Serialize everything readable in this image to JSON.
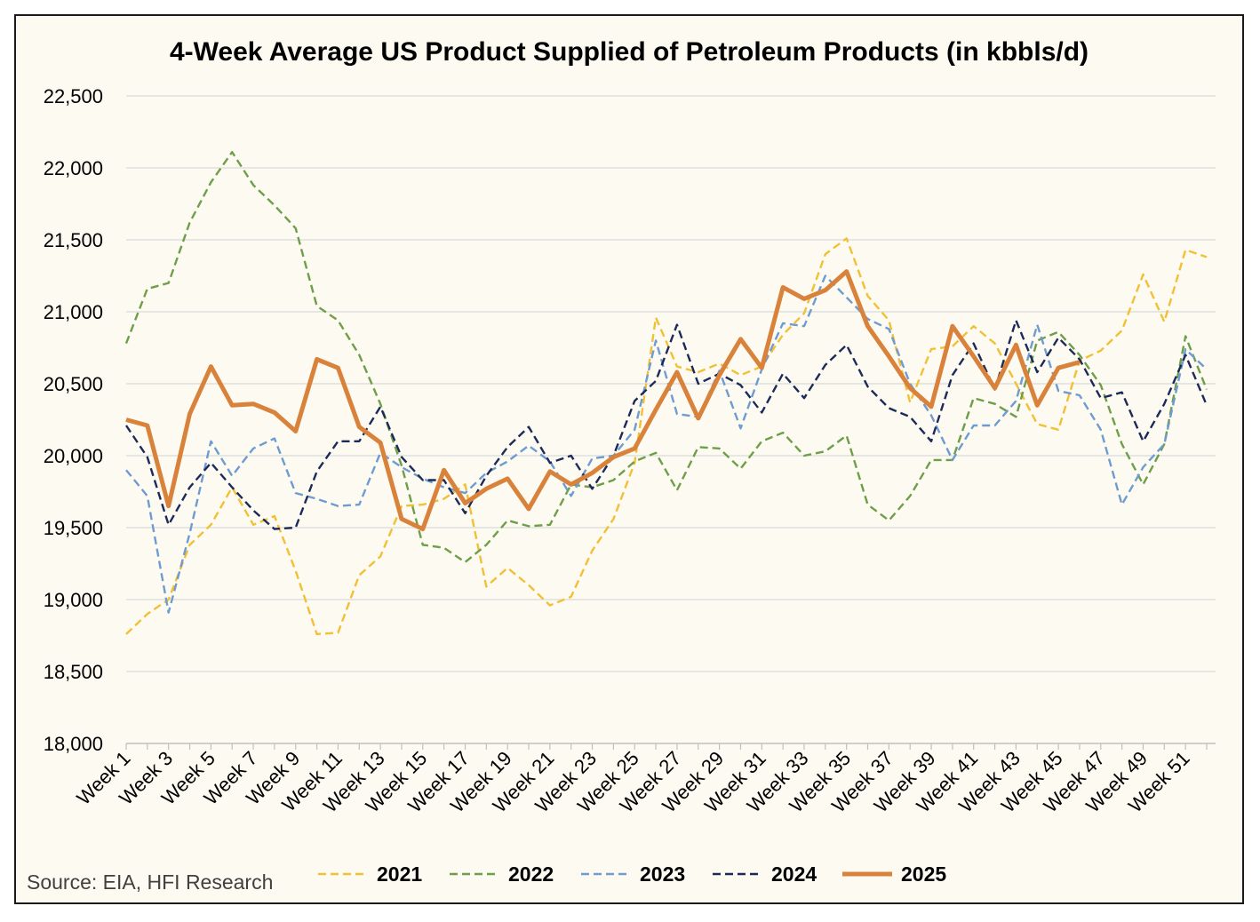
{
  "chart_data": {
    "type": "line",
    "title": "4-Week Average US Product Supplied of Petroleum Products (in kbbls/d)",
    "source": "Source: EIA, HFI Research",
    "xlabel": "",
    "ylabel": "",
    "ylim": [
      18000,
      22500
    ],
    "yticks": [
      18000,
      18500,
      19000,
      19500,
      20000,
      20500,
      21000,
      21500,
      22000,
      22500
    ],
    "ytick_labels": [
      "18,000",
      "18,500",
      "19,000",
      "19,500",
      "20,000",
      "20,500",
      "21,000",
      "21,500",
      "22,000",
      "22,500"
    ],
    "categories": [
      "Week 1",
      "Week 2",
      "Week 3",
      "Week 4",
      "Week 5",
      "Week 6",
      "Week 7",
      "Week 8",
      "Week 9",
      "Week 10",
      "Week 11",
      "Week 12",
      "Week 13",
      "Week 14",
      "Week 15",
      "Week 16",
      "Week 17",
      "Week 18",
      "Week 19",
      "Week 20",
      "Week 21",
      "Week 22",
      "Week 23",
      "Week 24",
      "Week 25",
      "Week 26",
      "Week 27",
      "Week 28",
      "Week 29",
      "Week 30",
      "Week 31",
      "Week 32",
      "Week 33",
      "Week 34",
      "Week 35",
      "Week 36",
      "Week 37",
      "Week 38",
      "Week 39",
      "Week 40",
      "Week 41",
      "Week 42",
      "Week 43",
      "Week 44",
      "Week 45",
      "Week 46",
      "Week 47",
      "Week 48",
      "Week 49",
      "Week 50",
      "Week 51",
      "Week 52"
    ],
    "xtick_labels": [
      "Week 1",
      "Week 3",
      "Week 5",
      "Week 7",
      "Week 9",
      "Week 11",
      "Week 13",
      "Week 15",
      "Week 17",
      "Week 19",
      "Week 21",
      "Week 23",
      "Week 25",
      "Week 27",
      "Week 29",
      "Week 31",
      "Week 33",
      "Week 35",
      "Week 37",
      "Week 39",
      "Week 41",
      "Week 43",
      "Week 45",
      "Week 47",
      "Week 49",
      "Week 51"
    ],
    "grid": true,
    "legend_position": "bottom",
    "series": [
      {
        "name": "2021",
        "color": "#f2c037",
        "style": "dashed",
        "values": [
          18760,
          18900,
          19000,
          19380,
          19520,
          19780,
          19520,
          19580,
          19200,
          18760,
          18770,
          19170,
          19300,
          19650,
          19660,
          19700,
          19800,
          19090,
          19220,
          19100,
          18960,
          19020,
          19340,
          19560,
          19950,
          20960,
          20620,
          20580,
          20640,
          20560,
          20620,
          20840,
          20990,
          21400,
          21510,
          21110,
          20940,
          20370,
          20740,
          20760,
          20900,
          20780,
          20500,
          20220,
          20180,
          20660,
          20730,
          20870,
          21260,
          20930,
          21430,
          21380
        ]
      },
      {
        "name": "2022",
        "color": "#6f9e4a",
        "style": "dashed",
        "values": [
          20780,
          21160,
          21200,
          21620,
          21900,
          22110,
          21880,
          21740,
          21580,
          21040,
          20940,
          20700,
          20360,
          19930,
          19380,
          19360,
          19260,
          19380,
          19550,
          19510,
          19520,
          19800,
          19780,
          19830,
          19960,
          20020,
          19760,
          20060,
          20050,
          19910,
          20100,
          20160,
          20000,
          20030,
          20140,
          19660,
          19550,
          19720,
          19970,
          19970,
          20400,
          20360,
          20270,
          20800,
          20860,
          20700,
          20490,
          20080,
          19800,
          20080,
          20830,
          20460
        ]
      },
      {
        "name": "2023",
        "color": "#6e9bd1",
        "style": "dashed",
        "values": [
          19900,
          19720,
          18910,
          19460,
          20100,
          19860,
          20050,
          20120,
          19740,
          19700,
          19650,
          19660,
          20020,
          19920,
          19840,
          19780,
          19740,
          19880,
          19960,
          20070,
          19960,
          19720,
          19980,
          20000,
          20180,
          20800,
          20290,
          20270,
          20590,
          20190,
          20600,
          20920,
          20900,
          21250,
          21100,
          20950,
          20880,
          20500,
          20280,
          19970,
          20210,
          20210,
          20380,
          20910,
          20450,
          20420,
          20180,
          19660,
          19920,
          20080,
          20740,
          20600
        ]
      },
      {
        "name": "2024",
        "color": "#1c2a5a",
        "style": "dashed",
        "values": [
          20210,
          19990,
          19520,
          19780,
          19950,
          19780,
          19620,
          19490,
          19500,
          19890,
          20100,
          20100,
          20340,
          19990,
          19830,
          19830,
          19600,
          19860,
          20060,
          20200,
          19950,
          20000,
          19770,
          20000,
          20380,
          20520,
          20910,
          20500,
          20570,
          20490,
          20300,
          20570,
          20400,
          20630,
          20770,
          20480,
          20330,
          20270,
          20100,
          20560,
          20780,
          20460,
          20940,
          20580,
          20820,
          20670,
          20400,
          20440,
          20100,
          20360,
          20700,
          20350
        ]
      },
      {
        "name": "2025",
        "color": "#d9823b",
        "style": "solid",
        "values": [
          20250,
          20210,
          19650,
          20290,
          20620,
          20350,
          20360,
          20300,
          20170,
          20670,
          20610,
          20200,
          20090,
          19560,
          19490,
          19900,
          19670,
          19770,
          19840,
          19630,
          19890,
          19800,
          19880,
          19990,
          20050,
          20320,
          20580,
          20260,
          20560,
          20810,
          20610,
          21170,
          21090,
          21150,
          21280,
          20900,
          20690,
          20470,
          20340,
          20900,
          20690,
          20470,
          20770,
          20350,
          20610,
          20650,
          null,
          null,
          null,
          null,
          null,
          null
        ]
      }
    ]
  }
}
